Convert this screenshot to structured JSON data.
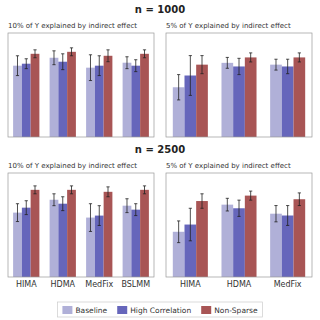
{
  "chart_data": [
    {
      "type": "bar",
      "title": "n = 1000",
      "subtitle": "10% of Y explained by indirect effect",
      "categories": [
        null,
        null,
        null,
        null
      ],
      "tick_labels": false,
      "grid": false,
      "legend": "bottom",
      "ylim": [
        0.0,
        1.05
      ],
      "yticks": [],
      "series": [
        {
          "name": "Baseline",
          "color": "#b0b0d8",
          "values": [
            0.72,
            0.8,
            0.7,
            0.75
          ],
          "errors": [
            0.1,
            0.07,
            0.13,
            0.06
          ]
        },
        {
          "name": "High Correlation",
          "color": "#6666bb",
          "values": [
            0.74,
            0.76,
            0.72,
            0.72
          ],
          "errors": [
            0.05,
            0.08,
            0.1,
            0.06
          ]
        },
        {
          "name": "Non-Sparse",
          "color": "#a85555",
          "values": [
            0.84,
            0.86,
            0.82,
            0.84
          ],
          "errors": [
            0.04,
            0.04,
            0.06,
            0.04
          ]
        }
      ]
    },
    {
      "type": "bar",
      "subtitle": "5% of Y explained by indirect effect",
      "categories": [
        null,
        null,
        null
      ],
      "tick_labels": false,
      "grid": false,
      "ylim": [
        0.0,
        1.15
      ],
      "yticks": [],
      "series": [
        {
          "color": "#b0b0d8",
          "values": [
            0.55,
            0.82,
            0.8
          ],
          "errors": [
            0.14,
            0.06,
            0.06
          ]
        },
        {
          "color": "#6666bb",
          "values": [
            0.68,
            0.78,
            0.78
          ],
          "errors": [
            0.22,
            0.09,
            0.08
          ]
        },
        {
          "color": "#a85555",
          "values": [
            0.8,
            0.88,
            0.88
          ],
          "errors": [
            0.1,
            0.05,
            0.05
          ]
        }
      ]
    },
    {
      "type": "bar",
      "title": "n = 2500",
      "subtitle": "10% of Y explained by indirect effect",
      "categories": [
        "HIMA",
        "HDMA",
        "MedFix",
        "BSLMM"
      ],
      "tick_labels": "x",
      "grid": false,
      "ylim": [
        0.0,
        1.05
      ],
      "yticks": [],
      "series": [
        {
          "color": "#b0b0d8",
          "values": [
            0.65,
            0.78,
            0.6,
            0.72
          ],
          "errors": [
            0.09,
            0.06,
            0.14,
            0.07
          ]
        },
        {
          "color": "#6666bb",
          "values": [
            0.7,
            0.74,
            0.62,
            0.68
          ],
          "errors": [
            0.07,
            0.07,
            0.1,
            0.06
          ]
        },
        {
          "color": "#a85555",
          "values": [
            0.88,
            0.88,
            0.86,
            0.88
          ],
          "errors": [
            0.04,
            0.04,
            0.05,
            0.04
          ]
        }
      ]
    },
    {
      "type": "bar",
      "subtitle": "5% of Y explained by indirect effect",
      "categories": [
        "HIMA",
        "HDMA",
        "MedFix"
      ],
      "tick_labels": "x",
      "grid": false,
      "ylim": [
        0.0,
        1.15
      ],
      "yticks": [],
      "series": [
        {
          "color": "#b0b0d8",
          "values": [
            0.5,
            0.8,
            0.7
          ],
          "errors": [
            0.12,
            0.07,
            0.09
          ]
        },
        {
          "color": "#6666bb",
          "values": [
            0.58,
            0.76,
            0.68
          ],
          "errors": [
            0.18,
            0.09,
            0.11
          ]
        },
        {
          "color": "#a85555",
          "values": [
            0.84,
            0.9,
            0.86
          ],
          "errors": [
            0.08,
            0.05,
            0.07
          ]
        }
      ]
    }
  ]
}
